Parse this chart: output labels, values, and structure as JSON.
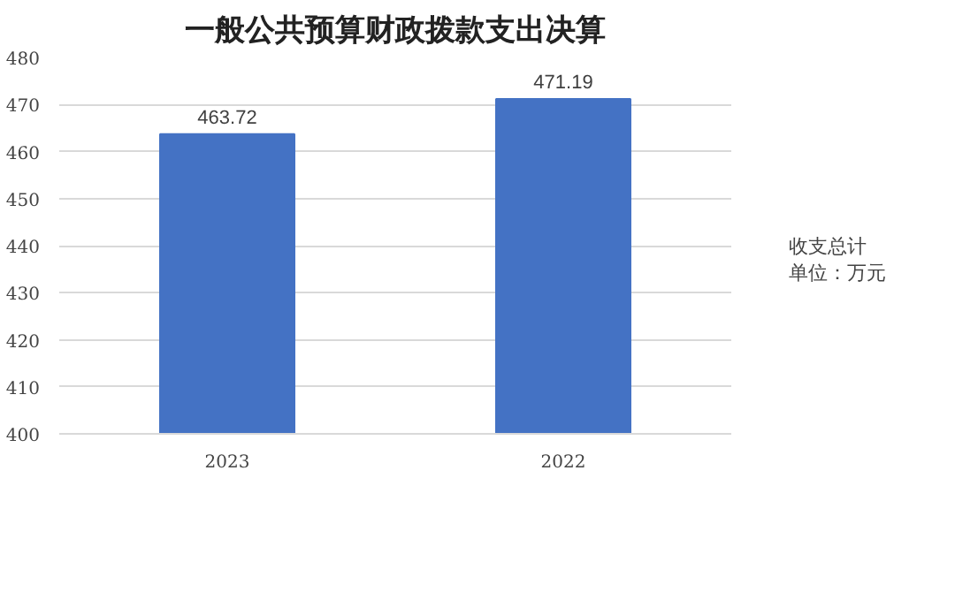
{
  "chart_data": {
    "type": "bar",
    "title": "一般公共预算财政拨款支出决算",
    "categories": [
      "2023",
      "2022"
    ],
    "series": [
      {
        "name": "收支总计",
        "color": "#4472c4",
        "values": [
          463.72,
          471.19
        ]
      }
    ],
    "ylim": [
      400,
      480
    ],
    "yticks": [
      400,
      410,
      420,
      430,
      440,
      450,
      460,
      470,
      480
    ],
    "grid": "y",
    "legend": "right",
    "data_labels": true,
    "annotations": [
      "单位：万元"
    ]
  }
}
